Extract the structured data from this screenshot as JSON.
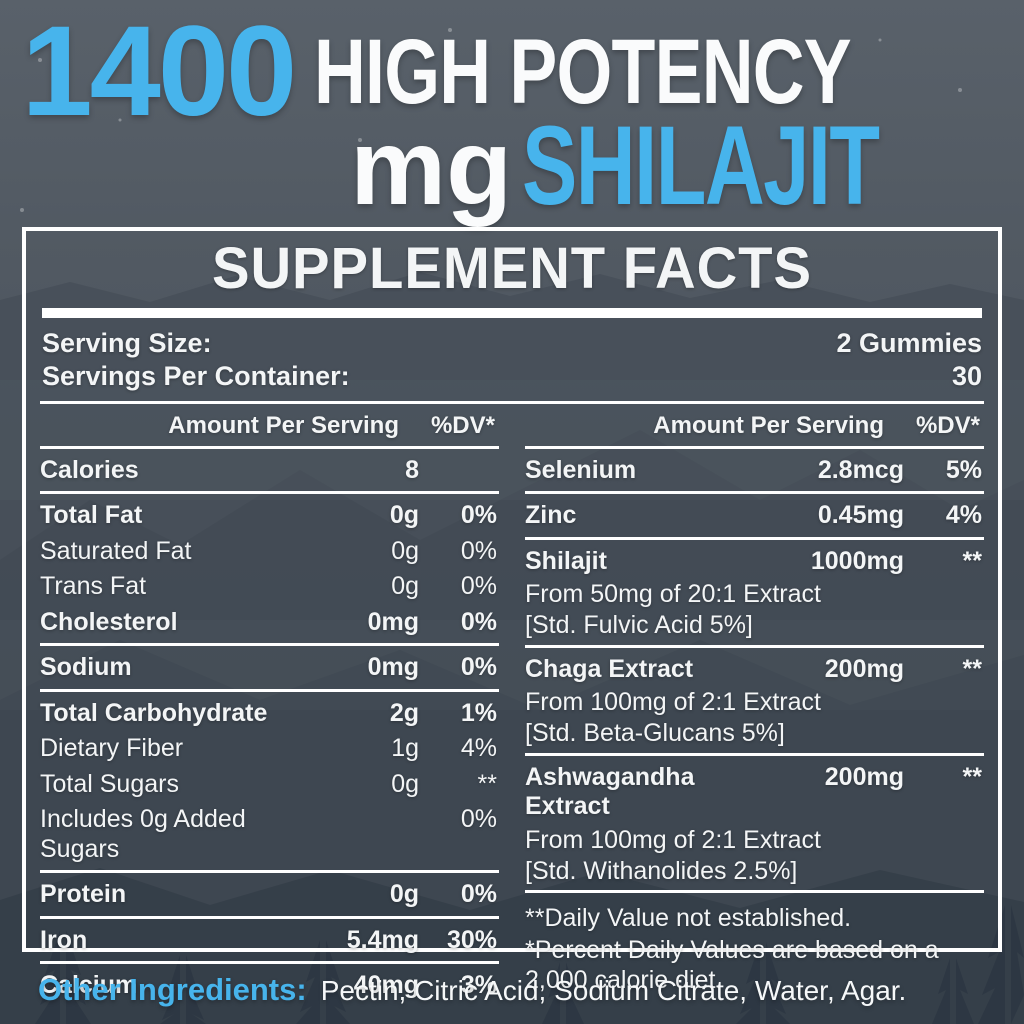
{
  "header": {
    "amount": "1400",
    "unit": "mg",
    "tagline": "HIGH POTENCY",
    "product": "SHILAJIT"
  },
  "panel": {
    "title": "SUPPLEMENT FACTS",
    "serving_size_label": "Serving Size:",
    "serving_size_value": "2 Gummies",
    "servings_per_container_label": "Servings Per Container:",
    "servings_per_container_value": "30",
    "col_header_amount": "Amount Per Serving",
    "col_header_dv": "%DV*",
    "left_rows": [
      {
        "name": "Calories",
        "amount": "8",
        "dv": "",
        "bold": true,
        "hr": true
      },
      {
        "name": "Total Fat",
        "amount": "0g",
        "dv": "0%",
        "bold": true,
        "hr": false
      },
      {
        "name": "Saturated Fat",
        "amount": "0g",
        "dv": "0%",
        "bold": false,
        "hr": false
      },
      {
        "name": "Trans Fat",
        "amount": "0g",
        "dv": "0%",
        "bold": false,
        "hr": false
      },
      {
        "name": "Cholesterol",
        "amount": "0mg",
        "dv": "0%",
        "bold": true,
        "hr": true
      },
      {
        "name": "Sodium",
        "amount": "0mg",
        "dv": "0%",
        "bold": true,
        "hr": true
      },
      {
        "name": "Total Carbohydrate",
        "amount": "2g",
        "dv": "1%",
        "bold": true,
        "hr": false
      },
      {
        "name": "Dietary Fiber",
        "amount": "1g",
        "dv": "4%",
        "bold": false,
        "hr": false
      },
      {
        "name": "Total Sugars",
        "amount": "0g",
        "dv": "**",
        "bold": false,
        "hr": false
      },
      {
        "name": "Includes 0g Added Sugars",
        "amount": "",
        "dv": "0%",
        "bold": false,
        "hr": true
      },
      {
        "name": "Protein",
        "amount": "0g",
        "dv": "0%",
        "bold": true,
        "hr": true
      },
      {
        "name": "Iron",
        "amount": "5.4mg",
        "dv": "30%",
        "bold": true,
        "hr": true
      },
      {
        "name": "Calcium",
        "amount": "40mg",
        "dv": "3%",
        "bold": true,
        "hr": false
      }
    ],
    "right_rows": [
      {
        "name": "Selenium",
        "amount": "2.8mcg",
        "dv": "5%",
        "bold": true,
        "hr": true
      },
      {
        "name": "Zinc",
        "amount": "0.45mg",
        "dv": "4%",
        "bold": true,
        "hr": true
      },
      {
        "name": "Shilajit",
        "amount": "1000mg",
        "dv": "**",
        "bold": true,
        "hr": true,
        "sublines": [
          "From 50mg of 20:1 Extract",
          "[Std. Fulvic Acid 5%]"
        ]
      },
      {
        "name": "Chaga Extract",
        "amount": "200mg",
        "dv": "**",
        "bold": true,
        "hr": true,
        "sublines": [
          "From 100mg of 2:1 Extract",
          "[Std. Beta-Glucans 5%]"
        ]
      },
      {
        "name": "Ashwagandha Extract",
        "amount": "200mg",
        "dv": "**",
        "bold": true,
        "hr": true,
        "sublines": [
          "From 100mg of 2:1 Extract",
          "[Std. Withanolides 2.5%]"
        ]
      }
    ],
    "footnotes": [
      "**Daily Value not established.",
      "*Percent Daily Values are based on a 2,000 calorie diet."
    ]
  },
  "footer": {
    "label": "Other Ingredients:",
    "value": "Pectin, Citric Acid, Sodium Citrate, Water, Agar."
  },
  "colors": {
    "accent_blue": "#47b4ec",
    "text_white": "#f3f5f6",
    "panel_border": "#ffffff"
  }
}
